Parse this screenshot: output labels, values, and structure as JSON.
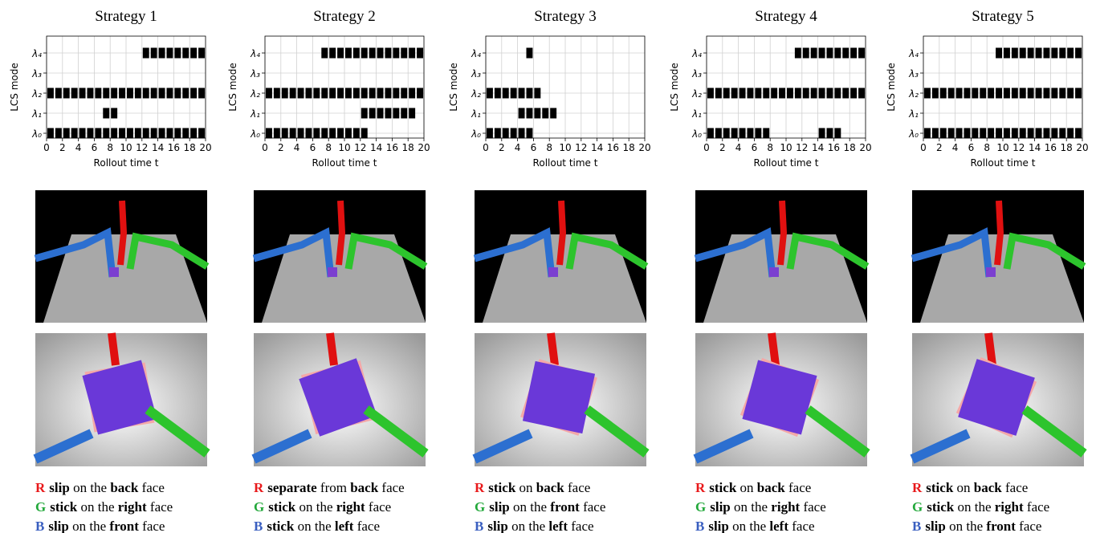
{
  "chart_data": [
    {
      "type": "event",
      "title": "Strategy 1",
      "xlabel": "Rollout time t",
      "ylabel": "LCS mode",
      "categories": [
        "λ₀",
        "λ₁",
        "λ₂",
        "λ₃",
        "λ₄"
      ],
      "events": [
        [
          0,
          1,
          2,
          3,
          4,
          5,
          6,
          7,
          8,
          9,
          10,
          11,
          12,
          13,
          14,
          15,
          16,
          17,
          18,
          19
        ],
        [
          7,
          8
        ],
        [
          0,
          1,
          2,
          3,
          4,
          5,
          6,
          7,
          8,
          9,
          10,
          11,
          12,
          13,
          14,
          15,
          16,
          17,
          18,
          19
        ],
        [],
        [
          12,
          13,
          14,
          15,
          16,
          17,
          18,
          19
        ]
      ],
      "xlim": [
        0,
        20
      ],
      "xticks": [
        0,
        2,
        4,
        6,
        8,
        10,
        12,
        14,
        16,
        18,
        20
      ],
      "grid": true,
      "color": "#000000"
    },
    {
      "type": "event",
      "title": "Strategy 2",
      "xlabel": "Rollout time t",
      "ylabel": "LCS mode",
      "categories": [
        "λ₀",
        "λ₁",
        "λ₂",
        "λ₃",
        "λ₄"
      ],
      "events": [
        [
          0,
          1,
          2,
          3,
          4,
          5,
          6,
          7,
          8,
          9,
          10,
          11,
          12
        ],
        [
          12,
          13,
          14,
          15,
          16,
          17,
          18
        ],
        [
          0,
          1,
          2,
          3,
          4,
          5,
          6,
          7,
          8,
          9,
          10,
          11,
          12,
          13,
          14,
          15,
          16,
          17,
          18,
          19
        ],
        [],
        [
          7,
          8,
          9,
          10,
          11,
          12,
          13,
          14,
          15,
          16,
          17,
          18,
          19
        ]
      ],
      "xlim": [
        0,
        20
      ],
      "xticks": [
        0,
        2,
        4,
        6,
        8,
        10,
        12,
        14,
        16,
        18,
        20
      ],
      "grid": true,
      "color": "#000000"
    },
    {
      "type": "event",
      "title": "Strategy 3",
      "xlabel": "Rollout time t",
      "ylabel": "LCS mode",
      "categories": [
        "λ₀",
        "λ₁",
        "λ₂",
        "λ₃",
        "λ₄"
      ],
      "events": [
        [
          0,
          1,
          2,
          3,
          4,
          5
        ],
        [
          4,
          5,
          6,
          7,
          8
        ],
        [
          0,
          1,
          2,
          3,
          4,
          5,
          6
        ],
        [],
        [
          5
        ]
      ],
      "xlim": [
        0,
        20
      ],
      "xticks": [
        0,
        2,
        4,
        6,
        8,
        10,
        12,
        14,
        16,
        18,
        20
      ],
      "grid": true,
      "color": "#000000"
    },
    {
      "type": "event",
      "title": "Strategy 4",
      "xlabel": "Rollout time t",
      "ylabel": "LCS mode",
      "categories": [
        "λ₀",
        "λ₁",
        "λ₂",
        "λ₃",
        "λ₄"
      ],
      "events": [
        [
          0,
          1,
          2,
          3,
          4,
          5,
          6,
          7,
          14,
          15,
          16
        ],
        [],
        [
          0,
          1,
          2,
          3,
          4,
          5,
          6,
          7,
          8,
          9,
          10,
          11,
          12,
          13,
          14,
          15,
          16,
          17,
          18,
          19
        ],
        [],
        [
          11,
          12,
          13,
          14,
          15,
          16,
          17,
          18,
          19
        ]
      ],
      "xlim": [
        0,
        20
      ],
      "xticks": [
        0,
        2,
        4,
        6,
        8,
        10,
        12,
        14,
        16,
        18,
        20
      ],
      "grid": true,
      "color": "#000000"
    },
    {
      "type": "event",
      "title": "Strategy 5",
      "xlabel": "Rollout time t",
      "ylabel": "LCS mode",
      "categories": [
        "λ₀",
        "λ₁",
        "λ₂",
        "λ₃",
        "λ₄"
      ],
      "events": [
        [
          0,
          1,
          2,
          3,
          4,
          5,
          6,
          7,
          8,
          9,
          10,
          11,
          12,
          13,
          14,
          15,
          16,
          17,
          18,
          19
        ],
        [],
        [
          0,
          1,
          2,
          3,
          4,
          5,
          6,
          7,
          8,
          9,
          10,
          11,
          12,
          13,
          14,
          15,
          16,
          17,
          18,
          19
        ],
        [],
        [
          9,
          10,
          11,
          12,
          13,
          14,
          15,
          16,
          17,
          18,
          19
        ]
      ],
      "xlim": [
        0,
        20
      ],
      "xticks": [
        0,
        2,
        4,
        6,
        8,
        10,
        12,
        14,
        16,
        18,
        20
      ],
      "grid": true,
      "color": "#000000"
    }
  ],
  "caption_colors": [
    "#e8191b",
    "#22a83a",
    "#3a5fc0"
  ],
  "captions": [
    [
      [
        "R",
        "slip",
        " on the ",
        "back",
        " face"
      ],
      [
        "G",
        "stick",
        " on the ",
        "right",
        " face"
      ],
      [
        "B",
        "slip",
        " on the ",
        "front",
        " face"
      ]
    ],
    [
      [
        "R",
        "separate",
        " from ",
        "back",
        " face"
      ],
      [
        "G",
        "stick",
        " on the ",
        "right",
        " face"
      ],
      [
        "B",
        "stick",
        " on the ",
        "left",
        " face"
      ]
    ],
    [
      [
        "R",
        "stick",
        " on ",
        "back",
        " face"
      ],
      [
        "G",
        "slip",
        " on the ",
        "front",
        " face"
      ],
      [
        "B",
        "slip",
        " on the ",
        "left",
        " face"
      ]
    ],
    [
      [
        "R",
        "stick",
        " on ",
        "back",
        " face"
      ],
      [
        "G",
        "slip",
        " on the ",
        "right",
        " face"
      ],
      [
        "B",
        "slip",
        " on the ",
        "left",
        " face"
      ]
    ],
    [
      [
        "R",
        "stick",
        " on ",
        "back",
        " face"
      ],
      [
        "G",
        "stick",
        " on the ",
        "right",
        " face"
      ],
      [
        "B",
        "slip",
        " on the ",
        "front",
        " face"
      ]
    ]
  ]
}
